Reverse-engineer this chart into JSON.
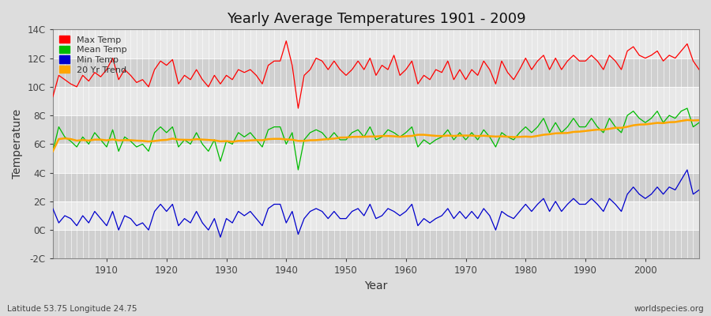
{
  "title": "Yearly Average Temperatures 1901 - 2009",
  "xlabel": "Year",
  "ylabel": "Temperature",
  "subtitle_left": "Latitude 53.75 Longitude 24.75",
  "subtitle_right": "worldspecies.org",
  "years": [
    1901,
    1902,
    1903,
    1904,
    1905,
    1906,
    1907,
    1908,
    1909,
    1910,
    1911,
    1912,
    1913,
    1914,
    1915,
    1916,
    1917,
    1918,
    1919,
    1920,
    1921,
    1922,
    1923,
    1924,
    1925,
    1926,
    1927,
    1928,
    1929,
    1930,
    1931,
    1932,
    1933,
    1934,
    1935,
    1936,
    1937,
    1938,
    1939,
    1940,
    1941,
    1942,
    1943,
    1944,
    1945,
    1946,
    1947,
    1948,
    1949,
    1950,
    1951,
    1952,
    1953,
    1954,
    1955,
    1956,
    1957,
    1958,
    1959,
    1960,
    1961,
    1962,
    1963,
    1964,
    1965,
    1966,
    1967,
    1968,
    1969,
    1970,
    1971,
    1972,
    1973,
    1974,
    1975,
    1976,
    1977,
    1978,
    1979,
    1980,
    1981,
    1982,
    1983,
    1984,
    1985,
    1986,
    1987,
    1988,
    1989,
    1990,
    1991,
    1992,
    1993,
    1994,
    1995,
    1996,
    1997,
    1998,
    1999,
    2000,
    2001,
    2002,
    2003,
    2004,
    2005,
    2006,
    2007,
    2008,
    2009
  ],
  "max_temp": [
    9.3,
    10.8,
    10.5,
    10.2,
    10.0,
    10.8,
    10.4,
    11.0,
    10.7,
    11.2,
    12.0,
    10.5,
    11.2,
    10.8,
    10.3,
    10.5,
    10.0,
    11.2,
    11.8,
    11.5,
    11.9,
    10.2,
    10.8,
    10.5,
    11.2,
    10.5,
    10.0,
    10.8,
    10.2,
    10.8,
    10.5,
    11.2,
    11.0,
    11.2,
    10.8,
    10.2,
    11.5,
    11.8,
    11.8,
    13.2,
    11.5,
    8.5,
    10.8,
    11.2,
    12.0,
    11.8,
    11.2,
    11.8,
    11.2,
    10.8,
    11.2,
    11.8,
    11.2,
    12.0,
    10.8,
    11.5,
    11.2,
    12.2,
    10.8,
    11.2,
    11.8,
    10.2,
    10.8,
    10.5,
    11.2,
    11.0,
    11.8,
    10.5,
    11.2,
    10.5,
    11.2,
    10.8,
    11.8,
    11.2,
    10.2,
    11.8,
    11.0,
    10.5,
    11.2,
    12.0,
    11.2,
    11.8,
    12.2,
    11.2,
    12.0,
    11.2,
    11.8,
    12.2,
    11.8,
    11.8,
    12.2,
    11.8,
    11.2,
    12.2,
    11.8,
    11.2,
    12.5,
    12.8,
    12.2,
    12.0,
    12.2,
    12.5,
    11.8,
    12.2,
    12.0,
    12.5,
    13.0,
    11.8,
    11.2
  ],
  "mean_temp": [
    5.5,
    7.2,
    6.5,
    6.2,
    5.8,
    6.5,
    6.0,
    6.8,
    6.3,
    5.8,
    7.0,
    5.5,
    6.5,
    6.2,
    5.8,
    6.0,
    5.5,
    6.8,
    7.2,
    6.8,
    7.2,
    5.8,
    6.3,
    6.0,
    6.8,
    6.0,
    5.5,
    6.3,
    4.8,
    6.2,
    6.0,
    6.8,
    6.5,
    6.8,
    6.3,
    5.8,
    7.0,
    7.2,
    7.2,
    6.0,
    6.8,
    4.2,
    6.3,
    6.8,
    7.0,
    6.8,
    6.3,
    6.8,
    6.3,
    6.3,
    6.8,
    7.0,
    6.5,
    7.2,
    6.3,
    6.5,
    7.0,
    6.8,
    6.5,
    6.8,
    7.2,
    5.8,
    6.3,
    6.0,
    6.3,
    6.5,
    7.0,
    6.3,
    6.8,
    6.3,
    6.8,
    6.3,
    7.0,
    6.5,
    5.8,
    6.8,
    6.5,
    6.3,
    6.8,
    7.2,
    6.8,
    7.2,
    7.8,
    6.8,
    7.5,
    6.8,
    7.2,
    7.8,
    7.2,
    7.2,
    7.8,
    7.2,
    6.8,
    7.8,
    7.2,
    6.8,
    8.0,
    8.3,
    7.8,
    7.5,
    7.8,
    8.3,
    7.5,
    8.0,
    7.8,
    8.3,
    8.5,
    7.2,
    7.5
  ],
  "min_temp": [
    1.5,
    0.5,
    1.0,
    0.8,
    0.3,
    1.0,
    0.5,
    1.3,
    0.8,
    0.3,
    1.3,
    0.0,
    1.0,
    0.8,
    0.3,
    0.5,
    0.0,
    1.3,
    1.8,
    1.3,
    1.8,
    0.3,
    0.8,
    0.5,
    1.3,
    0.5,
    0.0,
    0.8,
    -0.5,
    0.8,
    0.5,
    1.3,
    1.0,
    1.3,
    0.8,
    0.3,
    1.5,
    1.8,
    1.8,
    0.5,
    1.3,
    -0.3,
    0.8,
    1.3,
    1.5,
    1.3,
    0.8,
    1.3,
    0.8,
    0.8,
    1.3,
    1.5,
    1.0,
    1.8,
    0.8,
    1.0,
    1.5,
    1.3,
    1.0,
    1.3,
    1.8,
    0.3,
    0.8,
    0.5,
    0.8,
    1.0,
    1.5,
    0.8,
    1.3,
    0.8,
    1.3,
    0.8,
    1.5,
    1.0,
    0.0,
    1.3,
    1.0,
    0.8,
    1.3,
    1.8,
    1.3,
    1.8,
    2.2,
    1.3,
    2.0,
    1.3,
    1.8,
    2.2,
    1.8,
    1.8,
    2.2,
    1.8,
    1.3,
    2.2,
    1.8,
    1.3,
    2.5,
    3.0,
    2.5,
    2.2,
    2.5,
    3.0,
    2.5,
    3.0,
    2.8,
    3.5,
    4.2,
    2.5,
    2.8
  ],
  "trend_color": "#FFA500",
  "max_color": "#FF0000",
  "mean_color": "#00BB00",
  "min_color": "#0000CC",
  "bg_color": "#DDDDDD",
  "band_light": "#E8E8E8",
  "band_dark": "#D0D0D0",
  "grid_color": "#FFFFFF",
  "ylim": [
    -2,
    14
  ],
  "yticks": [
    -2,
    0,
    2,
    4,
    6,
    8,
    10,
    12,
    14
  ],
  "ytick_labels": [
    "-2C",
    "0C",
    "2C",
    "4C",
    "6C",
    "8C",
    "10C",
    "12C",
    "14C"
  ]
}
